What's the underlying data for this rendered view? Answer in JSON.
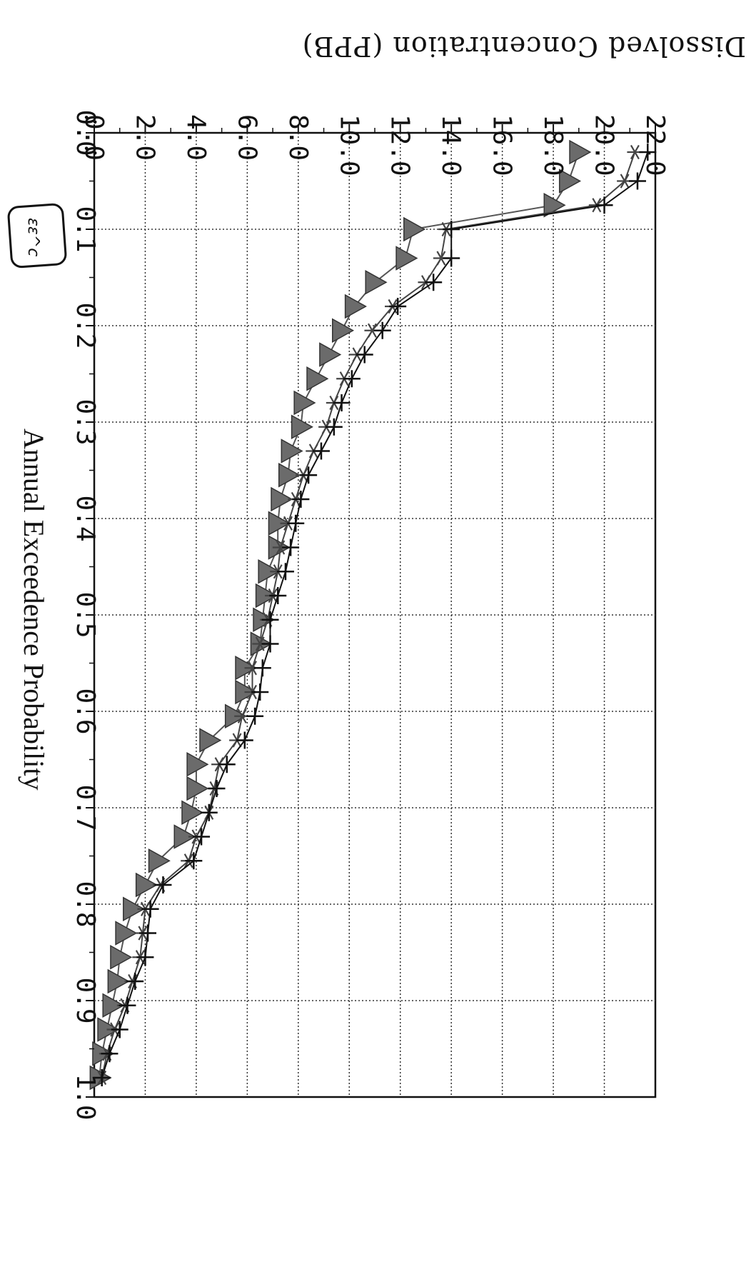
{
  "chart_data": {
    "type": "line",
    "orientation": "rotated-90-clockwise",
    "title": "Dissolved Concentration (PPB)",
    "xlabel": "Annual Exceedence Probability",
    "ylabel": "Dissolved Concentration (PPB)",
    "xlim": [
      0.0,
      1.0
    ],
    "ylim": [
      0.0,
      22.0
    ],
    "x_ticks": [
      "0.0",
      "0.1",
      "0.2",
      "0.3",
      "0.4",
      "0.5",
      "0.6",
      "0.7",
      "0.8",
      "0.9",
      "1.0"
    ],
    "y_ticks": [
      "0.0",
      "2.0",
      "4.0",
      "6.0",
      "8.0",
      "10.0",
      "12.0",
      "14.0",
      "16.0",
      "18.0",
      "20.0",
      "22.0"
    ],
    "grid": true,
    "annotation": "εε^c",
    "series": [
      {
        "marker": "triangle",
        "color": "#555555",
        "x": [
          0.02,
          0.05,
          0.075,
          0.1,
          0.13,
          0.155,
          0.18,
          0.205,
          0.23,
          0.255,
          0.28,
          0.305,
          0.33,
          0.355,
          0.38,
          0.405,
          0.43,
          0.455,
          0.48,
          0.505,
          0.53,
          0.555,
          0.58,
          0.605,
          0.63,
          0.655,
          0.68,
          0.705,
          0.73,
          0.755,
          0.78,
          0.805,
          0.83,
          0.855,
          0.88,
          0.905,
          0.93,
          0.955,
          0.98
        ],
        "y": [
          19.0,
          18.6,
          18.0,
          12.5,
          12.2,
          11.0,
          10.2,
          9.7,
          9.2,
          8.7,
          8.2,
          8.1,
          7.7,
          7.6,
          7.3,
          7.2,
          7.2,
          6.8,
          6.7,
          6.6,
          6.5,
          5.9,
          5.9,
          5.5,
          4.5,
          4.0,
          4.0,
          3.8,
          3.5,
          2.5,
          2.0,
          1.5,
          1.2,
          1.0,
          0.9,
          0.7,
          0.5,
          0.3,
          0.2
        ]
      },
      {
        "marker": "star",
        "color": "#444444",
        "x": [
          0.02,
          0.05,
          0.075,
          0.1,
          0.13,
          0.155,
          0.18,
          0.205,
          0.23,
          0.255,
          0.28,
          0.305,
          0.33,
          0.355,
          0.38,
          0.405,
          0.43,
          0.455,
          0.48,
          0.505,
          0.53,
          0.555,
          0.58,
          0.605,
          0.63,
          0.655,
          0.68,
          0.705,
          0.73,
          0.755,
          0.78,
          0.805,
          0.83,
          0.855,
          0.88,
          0.905,
          0.93,
          0.955,
          0.98
        ],
        "y": [
          21.2,
          20.8,
          19.7,
          13.8,
          13.6,
          13.0,
          11.7,
          10.9,
          10.3,
          9.8,
          9.4,
          9.1,
          8.6,
          8.2,
          7.9,
          7.6,
          7.3,
          7.2,
          7.0,
          6.8,
          6.5,
          6.2,
          6.2,
          5.8,
          5.6,
          4.9,
          4.7,
          4.5,
          4.0,
          3.7,
          2.6,
          2.0,
          1.9,
          1.8,
          1.5,
          1.2,
          0.8,
          0.5,
          0.3
        ]
      },
      {
        "marker": "plus",
        "color": "#111111",
        "x": [
          0.02,
          0.05,
          0.075,
          0.1,
          0.13,
          0.155,
          0.18,
          0.205,
          0.23,
          0.255,
          0.28,
          0.305,
          0.33,
          0.355,
          0.38,
          0.405,
          0.43,
          0.455,
          0.48,
          0.505,
          0.53,
          0.555,
          0.58,
          0.605,
          0.63,
          0.655,
          0.68,
          0.705,
          0.73,
          0.755,
          0.78,
          0.805,
          0.83,
          0.855,
          0.88,
          0.905,
          0.93,
          0.955,
          0.98
        ],
        "y": [
          21.7,
          21.3,
          20.0,
          14.0,
          14.0,
          13.3,
          11.9,
          11.3,
          10.6,
          10.1,
          9.7,
          9.4,
          8.9,
          8.4,
          8.1,
          7.9,
          7.7,
          7.5,
          7.2,
          6.9,
          6.9,
          6.6,
          6.5,
          6.3,
          5.9,
          5.2,
          4.8,
          4.5,
          4.2,
          3.9,
          2.7,
          2.2,
          2.1,
          2.0,
          1.6,
          1.3,
          1.0,
          0.6,
          0.3
        ]
      }
    ]
  }
}
